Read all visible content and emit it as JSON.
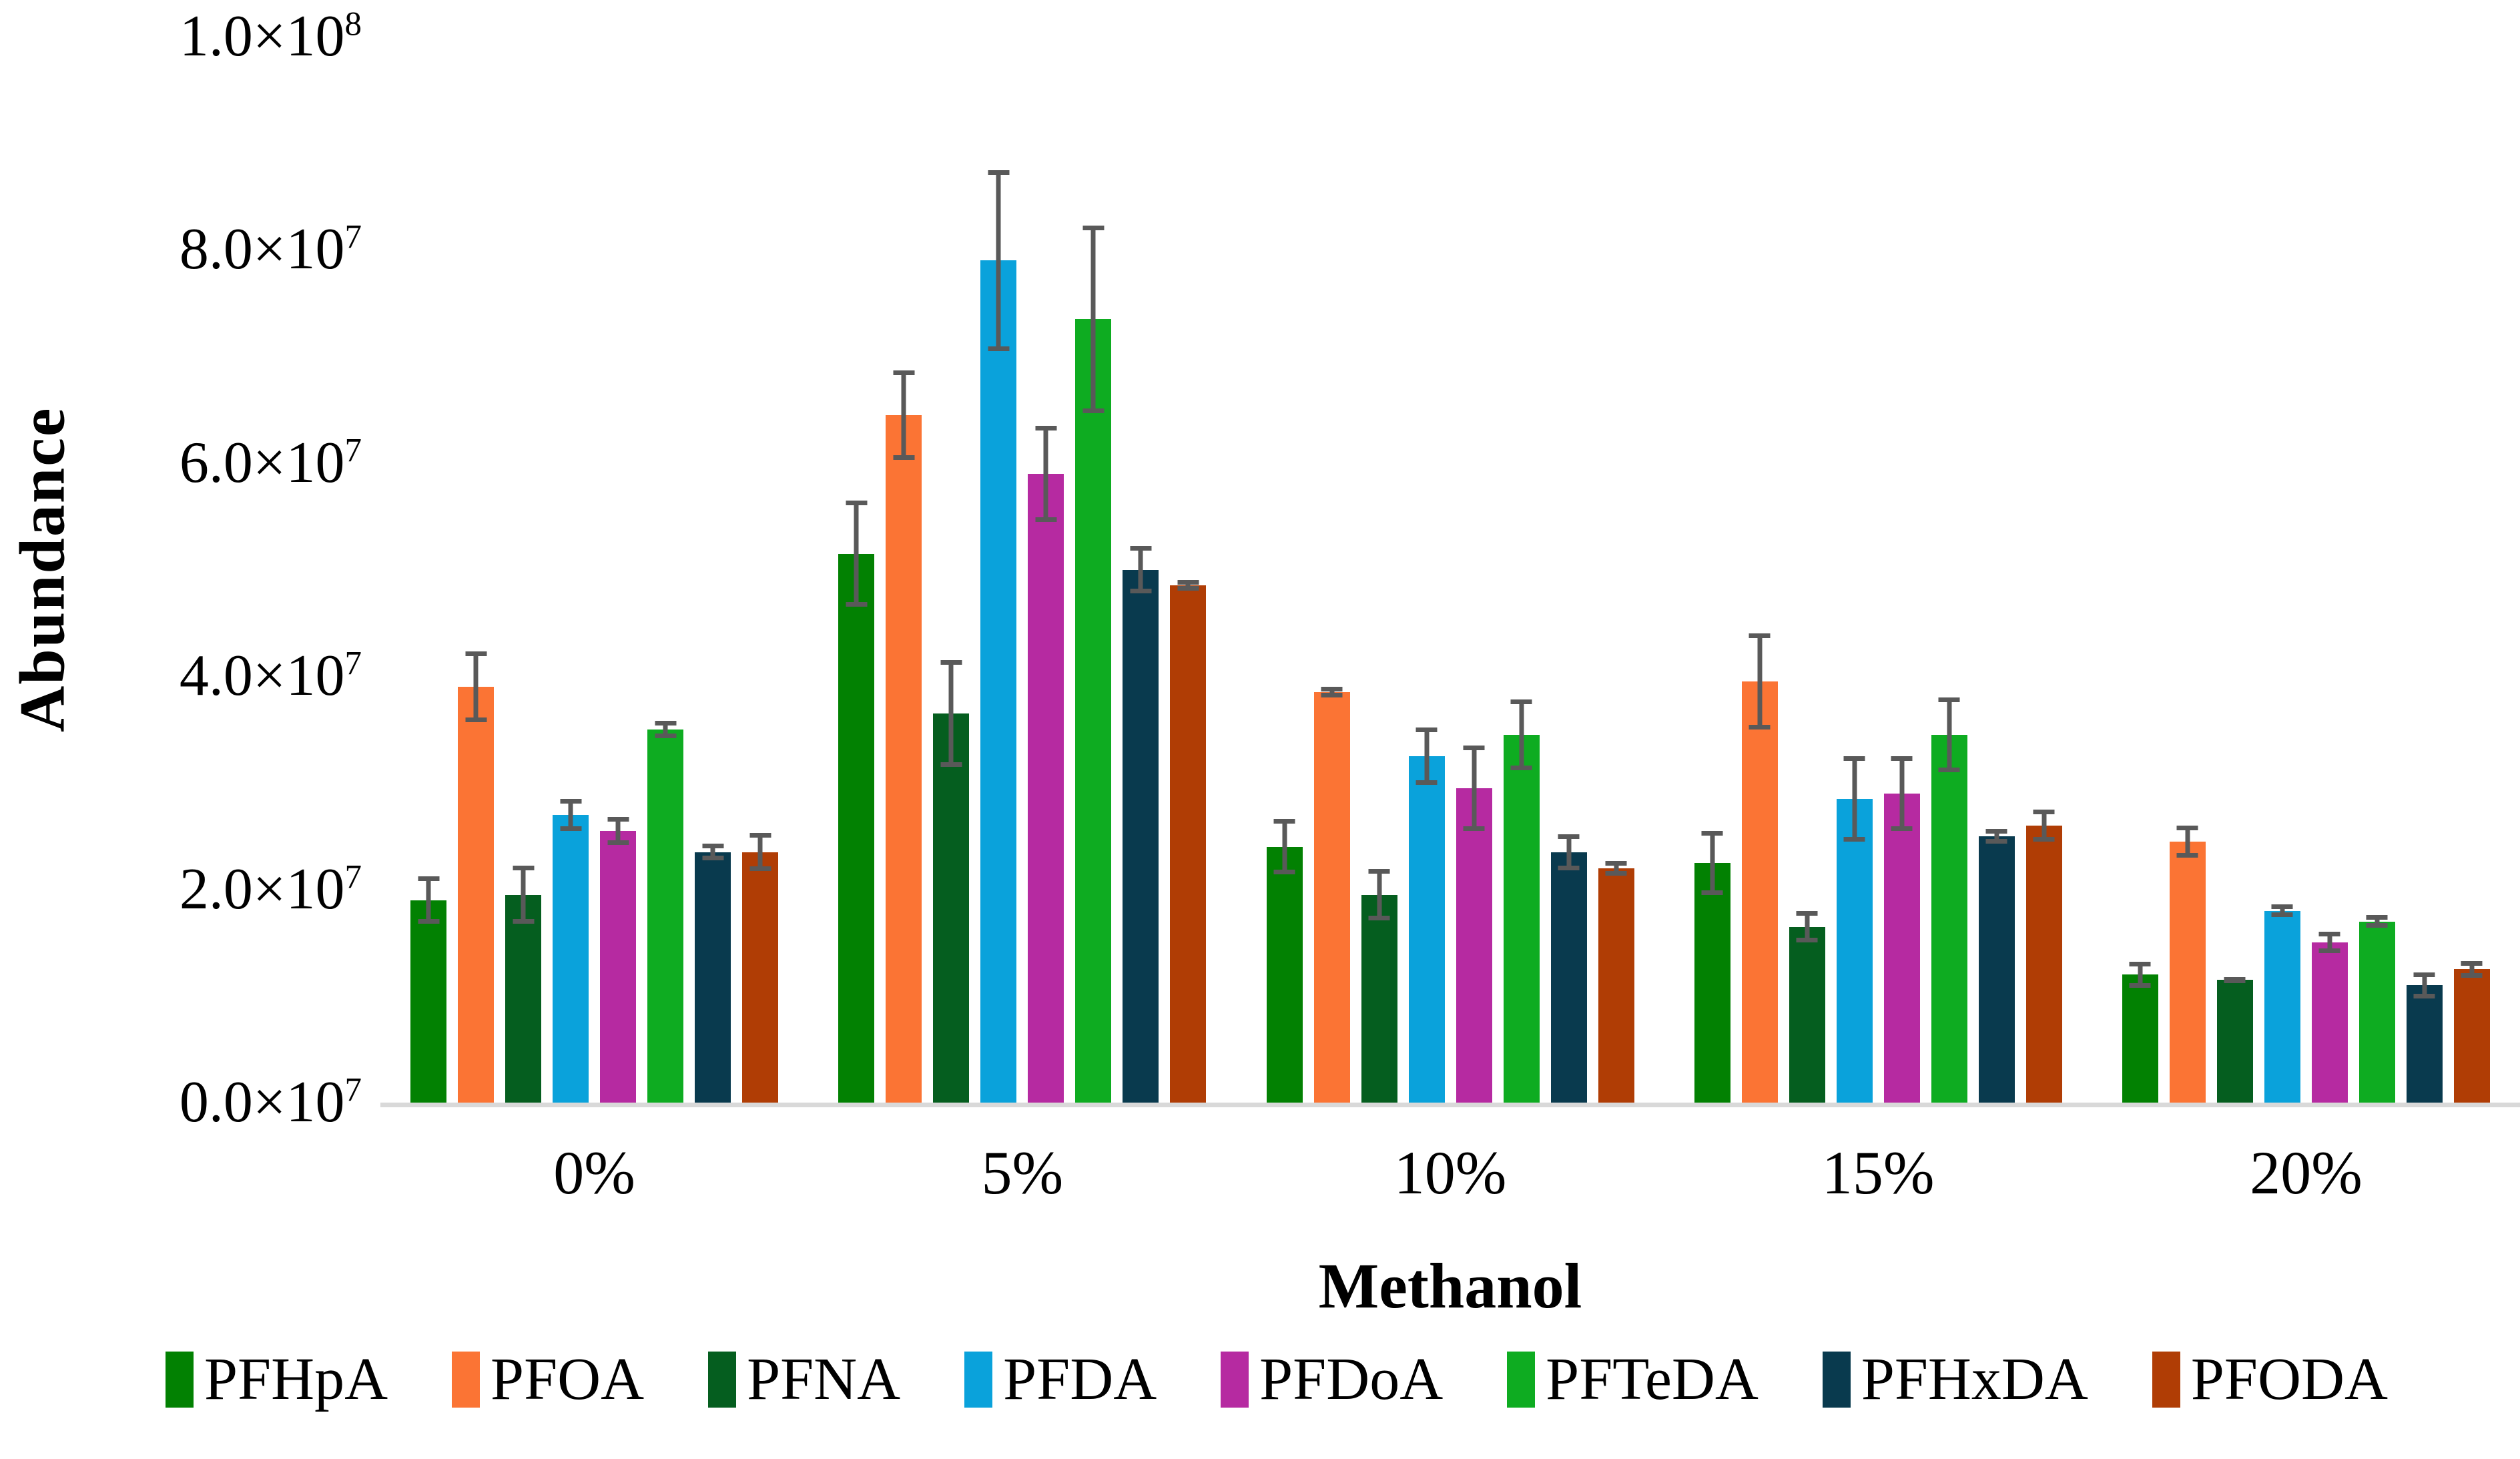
{
  "chart_data": {
    "type": "bar",
    "title": "",
    "xlabel": "Methanol",
    "ylabel": "Abundance",
    "categories": [
      "0%",
      "5%",
      "10%",
      "15%",
      "20%"
    ],
    "ylim": [
      0,
      100000000
    ],
    "grid": false,
    "legend_position": "bottom",
    "error_bar_color": "#595959",
    "axis_line_color": "#D9D9D9",
    "yticks": [
      {
        "value": 0,
        "mantissa": "0.0×10",
        "exponent": "7"
      },
      {
        "value": 20000000,
        "mantissa": "2.0×10",
        "exponent": "7"
      },
      {
        "value": 40000000,
        "mantissa": "4.0×10",
        "exponent": "7"
      },
      {
        "value": 60000000,
        "mantissa": "6.0×10",
        "exponent": "7"
      },
      {
        "value": 80000000,
        "mantissa": "8.0×10",
        "exponent": "7"
      },
      {
        "value": 100000000,
        "mantissa": "1.0×10",
        "exponent": "8"
      }
    ],
    "series": [
      {
        "name": "PFHpA",
        "color": "#028102",
        "values": [
          19000000,
          51500000,
          24000000,
          22500000,
          12000000
        ],
        "errors": [
          2200000,
          5000000,
          2600000,
          3000000,
          1200000
        ]
      },
      {
        "name": "PFOA",
        "color": "#FB7434",
        "values": [
          39000000,
          64500000,
          38500000,
          39500000,
          24500000
        ],
        "errors": [
          3300000,
          4200000,
          500000,
          4500000,
          1500000
        ]
      },
      {
        "name": "PFNA",
        "color": "#055E1F",
        "values": [
          19500000,
          36500000,
          19500000,
          16500000,
          11500000
        ],
        "errors": [
          2700000,
          5000000,
          2400000,
          1500000,
          300000
        ]
      },
      {
        "name": "PFDA",
        "color": "#0AA2DB",
        "values": [
          27000000,
          79000000,
          32500000,
          28500000,
          18000000
        ],
        "errors": [
          1500000,
          8500000,
          2700000,
          4000000,
          600000
        ]
      },
      {
        "name": "PFDoA",
        "color": "#B62AA1",
        "values": [
          25500000,
          59000000,
          29500000,
          29000000,
          15000000
        ],
        "errors": [
          1300000,
          4500000,
          4000000,
          3500000,
          1000000
        ]
      },
      {
        "name": "PFTeDA",
        "color": "#0EAC21",
        "values": [
          35000000,
          73500000,
          34500000,
          34500000,
          17000000
        ],
        "errors": [
          800000,
          8800000,
          3300000,
          3500000,
          600000
        ]
      },
      {
        "name": "PFHxDA",
        "color": "#093A4E",
        "values": [
          23500000,
          50000000,
          23500000,
          25000000,
          11000000
        ],
        "errors": [
          800000,
          2200000,
          1700000,
          700000,
          1200000
        ]
      },
      {
        "name": "PFODA",
        "color": "#B03D05",
        "values": [
          23500000,
          48500000,
          22000000,
          26000000,
          12500000
        ],
        "errors": [
          1800000,
          500000,
          700000,
          1500000,
          800000
        ]
      }
    ]
  }
}
